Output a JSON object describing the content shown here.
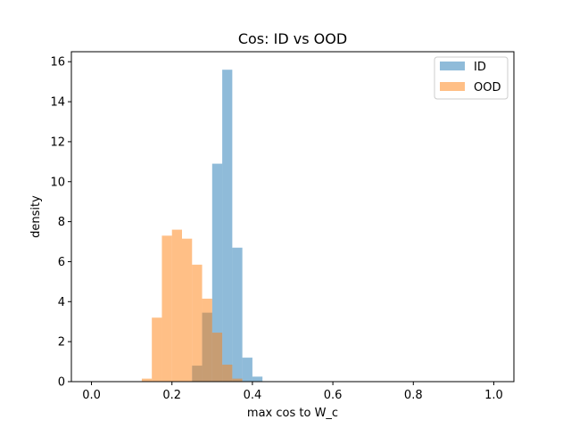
{
  "chart_data": {
    "type": "histogram",
    "title": "Cos: ID vs OOD",
    "xlabel": "max cos to W_c",
    "ylabel": "density",
    "xlim": [
      -0.05,
      1.05
    ],
    "ylim": [
      0,
      16.5
    ],
    "xticks": [
      "0.0",
      "0.2",
      "0.4",
      "0.6",
      "0.8",
      "1.0"
    ],
    "yticks": [
      "0",
      "2",
      "4",
      "6",
      "8",
      "10",
      "12",
      "14",
      "16"
    ],
    "legend_position": "top-right",
    "bin_width": 0.025,
    "series": [
      {
        "name": "ID",
        "color": "#1f77b4",
        "opacity": 0.5,
        "bins": [
          {
            "x0": 0.25,
            "x1": 0.275,
            "y": 0.8
          },
          {
            "x0": 0.275,
            "x1": 0.3,
            "y": 3.45
          },
          {
            "x0": 0.3,
            "x1": 0.325,
            "y": 10.9
          },
          {
            "x0": 0.325,
            "x1": 0.35,
            "y": 15.6
          },
          {
            "x0": 0.35,
            "x1": 0.375,
            "y": 6.7
          },
          {
            "x0": 0.375,
            "x1": 0.4,
            "y": 1.2
          },
          {
            "x0": 0.4,
            "x1": 0.425,
            "y": 0.25
          }
        ]
      },
      {
        "name": "OOD",
        "color": "#ff7f0e",
        "opacity": 0.5,
        "bins": [
          {
            "x0": 0.125,
            "x1": 0.15,
            "y": 0.15
          },
          {
            "x0": 0.15,
            "x1": 0.175,
            "y": 3.2
          },
          {
            "x0": 0.175,
            "x1": 0.2,
            "y": 7.3
          },
          {
            "x0": 0.2,
            "x1": 0.225,
            "y": 7.6
          },
          {
            "x0": 0.225,
            "x1": 0.25,
            "y": 7.15
          },
          {
            "x0": 0.25,
            "x1": 0.275,
            "y": 5.85
          },
          {
            "x0": 0.275,
            "x1": 0.3,
            "y": 4.15
          },
          {
            "x0": 0.3,
            "x1": 0.325,
            "y": 2.45
          },
          {
            "x0": 0.325,
            "x1": 0.35,
            "y": 0.85
          },
          {
            "x0": 0.35,
            "x1": 0.375,
            "y": 0.15
          }
        ]
      }
    ]
  }
}
